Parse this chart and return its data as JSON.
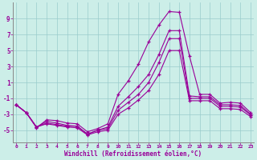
{
  "xlabel": "Windchill (Refroidissement éolien,°C)",
  "bg_color": "#cceee8",
  "grid_color": "#99cccc",
  "line_color": "#990099",
  "x": [
    0,
    1,
    2,
    3,
    4,
    5,
    6,
    7,
    8,
    9,
    10,
    11,
    12,
    13,
    14,
    15,
    16,
    17,
    18,
    19,
    20,
    21,
    22,
    23
  ],
  "s1": [
    -1.8,
    -2.8,
    -4.7,
    -3.7,
    -3.8,
    -4.1,
    -4.2,
    -5.2,
    -4.8,
    -4.2,
    -0.5,
    1.2,
    3.3,
    6.1,
    8.2,
    9.9,
    9.8,
    4.3,
    -0.5,
    -0.5,
    -1.6,
    -1.5,
    -1.6,
    -2.8
  ],
  "s2": [
    -1.8,
    -2.8,
    -4.6,
    -3.9,
    -4.1,
    -4.4,
    -4.5,
    -5.5,
    -5.0,
    -4.6,
    -2.0,
    -0.8,
    0.5,
    2.0,
    4.5,
    7.5,
    7.5,
    -0.7,
    -0.8,
    -0.8,
    -1.8,
    -1.8,
    -1.9,
    -3.0
  ],
  "s3": [
    -1.8,
    -2.8,
    -4.6,
    -4.1,
    -4.3,
    -4.5,
    -4.5,
    -5.5,
    -5.0,
    -4.8,
    -2.5,
    -1.5,
    -0.5,
    1.0,
    3.5,
    6.5,
    6.5,
    -1.0,
    -1.0,
    -1.0,
    -2.0,
    -2.0,
    -2.1,
    -3.1
  ],
  "s4": [
    -1.8,
    -2.8,
    -4.6,
    -4.2,
    -4.4,
    -4.6,
    -4.7,
    -5.6,
    -5.2,
    -5.0,
    -3.0,
    -2.2,
    -1.2,
    0.0,
    2.0,
    5.0,
    5.0,
    -1.3,
    -1.3,
    -1.3,
    -2.3,
    -2.3,
    -2.4,
    -3.3
  ],
  "ylim": [
    -6.5,
    11.0
  ],
  "yticks": [
    -5,
    -3,
    -1,
    1,
    3,
    5,
    7,
    9
  ],
  "xticks": [
    0,
    1,
    2,
    3,
    4,
    5,
    6,
    7,
    8,
    9,
    10,
    11,
    12,
    13,
    14,
    15,
    16,
    17,
    18,
    19,
    20,
    21,
    22,
    23
  ]
}
